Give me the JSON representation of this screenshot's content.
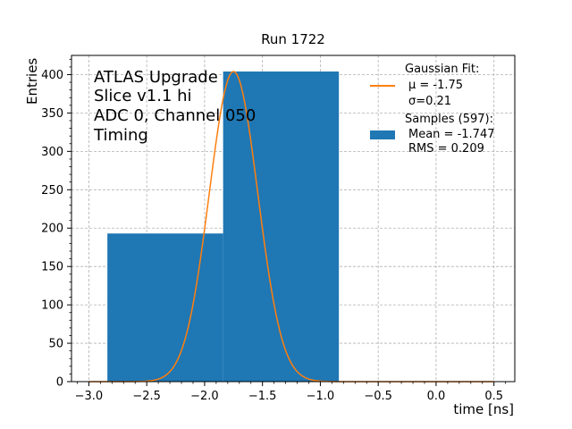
{
  "chart_data": {
    "type": "bar",
    "title": "Run 1722",
    "xlabel": "time [ns]",
    "ylabel": "Entries",
    "xlim": [
      -3.15,
      0.68
    ],
    "ylim": [
      0,
      425
    ],
    "x_ticks": [
      -3.0,
      -2.5,
      -2.0,
      -1.5,
      -1.0,
      -0.5,
      0.0,
      0.5
    ],
    "x_tick_labels": [
      "−3.0",
      "−2.5",
      "−2.0",
      "−1.5",
      "−1.0",
      "−0.5",
      "0.0",
      "0.5"
    ],
    "y_ticks": [
      0,
      50,
      100,
      150,
      200,
      250,
      300,
      350,
      400
    ],
    "y_tick_labels": [
      "0",
      "50",
      "100",
      "150",
      "200",
      "250",
      "300",
      "350",
      "400"
    ],
    "grid": true,
    "legend_position": "top-right",
    "colors": {
      "histogram": "#1f77b4",
      "fit": "#ff7f0e",
      "grid": "#b0b0b0"
    },
    "histogram": {
      "name": "Samples (597):",
      "bins": [
        {
          "x0": -2.84,
          "x1": -1.84,
          "count": 193
        },
        {
          "x0": -1.84,
          "x1": -0.84,
          "count": 404
        }
      ]
    },
    "fit": {
      "name": "Gaussian Fit:",
      "mu": -1.75,
      "sigma": 0.21,
      "amplitude": 404,
      "x_range": [
        -3.0,
        0.5
      ]
    },
    "annotation_lines": [
      "ATLAS Upgrade",
      "Slice v1.1 hi",
      "ADC 0, Channel 050",
      "Timing"
    ],
    "legend": {
      "fit_title": "Gaussian Fit:",
      "fit_mu": "μ = -1.75",
      "fit_sigma": "σ=0.21",
      "samples_title": "Samples (597):",
      "samples_mean": "Mean = -1.747",
      "samples_rms": "RMS = 0.209"
    }
  }
}
